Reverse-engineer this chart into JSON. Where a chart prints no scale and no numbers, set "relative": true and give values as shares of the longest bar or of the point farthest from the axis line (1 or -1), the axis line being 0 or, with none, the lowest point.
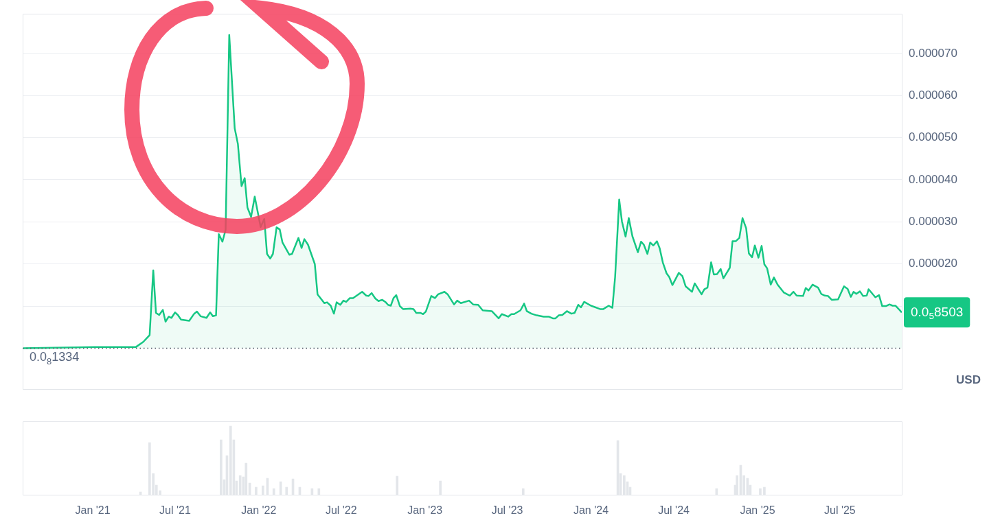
{
  "chart_data": [
    {
      "type": "area",
      "ylabel": "USD",
      "marker": "none",
      "grid": "y",
      "legend": false,
      "tick_labels": "y",
      "xlim": [
        "2020-07-31",
        "2025-11-14"
      ],
      "ylim": [
        -9.7e-06,
        7.94e-05
      ],
      "yticks": [
        {
          "value": 1e-05,
          "label": null
        },
        {
          "value": 2e-05,
          "label": "0.000020"
        },
        {
          "value": 3e-05,
          "label": "0.000030"
        },
        {
          "value": 4e-05,
          "label": "0.000040"
        },
        {
          "value": 5e-05,
          "label": "0.000050"
        },
        {
          "value": 6e-05,
          "label": "0.000060"
        },
        {
          "value": 7e-05,
          "label": "0.000070"
        }
      ],
      "ref_lines": [
        {
          "axis": "y",
          "value": 1.334e-08,
          "label": "0.0$_{8}$1334",
          "line_style": "dotted",
          "color": "#4b5563"
        }
      ],
      "annotations": [
        {
          "text": "0.0$_{5}$8503",
          "x": "2025-11-14",
          "y": 8.503e-06
        }
      ],
      "x": [
        "2020-07-31",
        "2021-01-04",
        "2021-04-06",
        "2021-04-22",
        "2021-05-06",
        "2021-05-14",
        "2021-05-20",
        "2021-05-27",
        "2021-06-04",
        "2021-06-10",
        "2021-06-17",
        "2021-06-23",
        "2021-07-01",
        "2021-07-07",
        "2021-07-14",
        "2021-08-01",
        "2021-08-12",
        "2021-08-18",
        "2021-08-26",
        "2021-09-08",
        "2021-09-16",
        "2021-09-22",
        "2021-09-29",
        "2021-10-05",
        "2021-10-13",
        "2021-10-20",
        "2021-10-28",
        "2021-11-09",
        "2021-11-16",
        "2021-11-24",
        "2021-12-01",
        "2021-12-07",
        "2021-12-15",
        "2021-12-23",
        "2022-01-05",
        "2022-01-13",
        "2022-01-19",
        "2022-01-26",
        "2022-02-01",
        "2022-02-09",
        "2022-02-16",
        "2022-02-22",
        "2022-03-09",
        "2022-03-15",
        "2022-03-29",
        "2022-04-05",
        "2022-04-11",
        "2022-04-19",
        "2022-05-04",
        "2022-05-10",
        "2022-05-25",
        "2022-05-31",
        "2022-06-08",
        "2022-06-15",
        "2022-06-21",
        "2022-06-29",
        "2022-07-06",
        "2022-07-12",
        "2022-07-20",
        "2022-07-27",
        "2022-08-16",
        "2022-08-25",
        "2022-08-30",
        "2022-09-06",
        "2022-09-14",
        "2022-09-21",
        "2022-09-29",
        "2022-10-06",
        "2022-10-12",
        "2022-10-18",
        "2022-10-24",
        "2022-10-30",
        "2022-11-07",
        "2022-11-14",
        "2022-11-30",
        "2022-12-07",
        "2022-12-13",
        "2022-12-22",
        "2022-12-28",
        "2023-01-03",
        "2023-01-15",
        "2023-01-23",
        "2023-01-30",
        "2023-02-13",
        "2023-02-20",
        "2023-03-06",
        "2023-03-13",
        "2023-03-21",
        "2023-04-08",
        "2023-04-17",
        "2023-04-28",
        "2023-05-08",
        "2023-05-28",
        "2023-06-12",
        "2023-06-19",
        "2023-07-03",
        "2023-07-10",
        "2023-07-16",
        "2023-07-30",
        "2023-08-07",
        "2023-08-13",
        "2023-08-23",
        "2023-09-04",
        "2023-09-19",
        "2023-09-30",
        "2023-10-09",
        "2023-10-15",
        "2023-10-22",
        "2023-10-30",
        "2023-11-09",
        "2023-11-19",
        "2023-11-26",
        "2023-12-04",
        "2023-12-10",
        "2023-12-17",
        "2024-01-01",
        "2024-01-21",
        "2024-01-28",
        "2024-02-09",
        "2024-02-17",
        "2024-02-23",
        "2024-03-03",
        "2024-03-09",
        "2024-03-17",
        "2024-03-24",
        "2024-04-01",
        "2024-04-13",
        "2024-04-20",
        "2024-04-26",
        "2024-05-04",
        "2024-05-10",
        "2024-05-17",
        "2024-05-25",
        "2024-05-31",
        "2024-06-07",
        "2024-06-15",
        "2024-06-21",
        "2024-06-28",
        "2024-07-12",
        "2024-07-20",
        "2024-07-27",
        "2024-08-10",
        "2024-08-16",
        "2024-08-31",
        "2024-09-06",
        "2024-09-13",
        "2024-09-21",
        "2024-09-27",
        "2024-10-04",
        "2024-10-12",
        "2024-10-18",
        "2024-11-01",
        "2024-11-07",
        "2024-11-14",
        "2024-11-22",
        "2024-11-29",
        "2024-12-07",
        "2024-12-13",
        "2024-12-20",
        "2024-12-26",
        "2025-01-03",
        "2025-01-10",
        "2025-01-16",
        "2025-01-22",
        "2025-01-30",
        "2025-02-06",
        "2025-02-14",
        "2025-02-28",
        "2025-03-13",
        "2025-03-21",
        "2025-03-28",
        "2025-04-11",
        "2025-04-17",
        "2025-04-23",
        "2025-05-02",
        "2025-05-14",
        "2025-05-21",
        "2025-05-29",
        "2025-06-05",
        "2025-06-13",
        "2025-06-27",
        "2025-07-10",
        "2025-07-18",
        "2025-07-25",
        "2025-07-31",
        "2025-08-06",
        "2025-08-14",
        "2025-08-21",
        "2025-08-29",
        "2025-09-02",
        "2025-09-17",
        "2025-09-25",
        "2025-10-02",
        "2025-10-10",
        "2025-10-18",
        "2025-10-25",
        "2025-10-31",
        "2025-11-09",
        "2025-11-14"
      ],
      "series": [
        {
          "color": "#16c784",
          "values": [
            0,
            3e-07,
            3e-07,
            1.5e-06,
            3.1e-06,
            1.85e-05,
            8.4e-06,
            7.9e-06,
            9.1e-06,
            6.3e-06,
            7.5e-06,
            7.2e-06,
            8.5e-06,
            7.9e-06,
            6.8e-06,
            6.5e-06,
            8.2e-06,
            8.7e-06,
            7.6e-06,
            7.2e-06,
            8.5e-06,
            7.6e-06,
            7.8e-06,
            2.71e-05,
            2.53e-05,
            2.81e-05,
            7.44e-05,
            5.22e-05,
            4.85e-05,
            3.85e-05,
            4.04e-05,
            3.34e-05,
            3.12e-05,
            3.6e-05,
            2.88e-05,
            3.07e-05,
            2.24e-05,
            2.13e-05,
            2.24e-05,
            2.87e-05,
            2.82e-05,
            2.51e-05,
            2.22e-05,
            2.24e-05,
            2.62e-05,
            2.38e-05,
            2.59e-05,
            2.46e-05,
            2e-05,
            1.28e-05,
            1.07e-05,
            1.09e-05,
            1.01e-05,
            8.2e-06,
            1.09e-05,
            1.03e-05,
            1.13e-05,
            1.1e-05,
            1.19e-05,
            1.19e-05,
            1.34e-05,
            1.25e-05,
            1.24e-05,
            1.31e-05,
            1.18e-05,
            1.12e-05,
            1.15e-05,
            1.1e-05,
            1.03e-05,
            1.01e-05,
            1.19e-05,
            1.26e-05,
            1e-05,
            9.3e-06,
            9.4e-06,
            9.3e-06,
            8.4e-06,
            8.4e-06,
            8.1e-06,
            8.7e-06,
            1.24e-05,
            1.19e-05,
            1.28e-05,
            1.34e-05,
            1.28e-05,
            1.04e-05,
            1.13e-05,
            1.07e-05,
            1.13e-05,
            1.04e-05,
            1.03e-05,
            9e-06,
            8.8e-06,
            7.1e-06,
            8.1e-06,
            7.5e-06,
            8.1e-06,
            8.1e-06,
            9e-06,
            1.06e-05,
            8.8e-06,
            8.2e-06,
            7.8e-06,
            7.5e-06,
            7.5e-06,
            7.1e-06,
            7.1e-06,
            7.8e-06,
            7.9e-06,
            8.8e-06,
            8.2e-06,
            8.4e-06,
            1.03e-05,
            9.7e-06,
            1.1e-05,
            1.01e-05,
            9.3e-06,
            9.3e-06,
            1.01e-05,
            9.6e-06,
            1.69e-05,
            3.53e-05,
            3.01e-05,
            2.65e-05,
            3.09e-05,
            2.66e-05,
            2.28e-05,
            2.53e-05,
            2.46e-05,
            2.24e-05,
            2.51e-05,
            2.44e-05,
            2.54e-05,
            2.37e-05,
            2.03e-05,
            1.78e-05,
            1.69e-05,
            1.5e-05,
            1.79e-05,
            1.71e-05,
            1.47e-05,
            1.34e-05,
            1.54e-05,
            1.28e-05,
            1.4e-05,
            1.44e-05,
            2.04e-05,
            1.75e-05,
            1.76e-05,
            1.88e-05,
            1.66e-05,
            1.91e-05,
            2.54e-05,
            2.54e-05,
            2.62e-05,
            3.09e-05,
            2.85e-05,
            2.25e-05,
            2.16e-05,
            2.44e-05,
            2.15e-05,
            2.43e-05,
            1.99e-05,
            1.9e-05,
            1.51e-05,
            1.68e-05,
            1.51e-05,
            1.32e-05,
            1.25e-05,
            1.34e-05,
            1.25e-05,
            1.24e-05,
            1.43e-05,
            1.37e-05,
            1.51e-05,
            1.44e-05,
            1.29e-05,
            1.25e-05,
            1.24e-05,
            1.15e-05,
            1.16e-05,
            1.47e-05,
            1.41e-05,
            1.22e-05,
            1.34e-05,
            1.29e-05,
            1.35e-05,
            1.24e-05,
            1.25e-05,
            1.4e-05,
            1.21e-05,
            1.26e-05,
            1e-05,
            1e-05,
            1.04e-05,
            1.01e-05,
            1.01e-05,
            9.1e-06,
            8.503e-06
          ]
        }
      ]
    },
    {
      "type": "bar",
      "relative": true,
      "legend": false,
      "tick_labels": "x",
      "color": "#e3e6ea",
      "xlim": [
        "2020-07-31",
        "2025-11-14"
      ],
      "xticks": [
        {
          "value": "2021-01-01",
          "label": "Jan '21"
        },
        {
          "value": "2021-07-01",
          "label": "Jul '21"
        },
        {
          "value": "2022-01-01",
          "label": "Jan '22"
        },
        {
          "value": "2022-07-01",
          "label": "Jul '22"
        },
        {
          "value": "2023-01-01",
          "label": "Jan '23"
        },
        {
          "value": "2023-07-01",
          "label": "Jul '23"
        },
        {
          "value": "2024-01-01",
          "label": "Jan '24"
        },
        {
          "value": "2024-07-01",
          "label": "Jul '24"
        },
        {
          "value": "2025-01-01",
          "label": "Jan '25"
        },
        {
          "value": "2025-07-01",
          "label": "Jul '25"
        }
      ],
      "x": [
        "2021-04-16",
        "2021-05-06",
        "2021-05-14",
        "2021-05-21",
        "2021-05-29",
        "2021-10-10",
        "2021-10-17",
        "2021-10-23",
        "2021-10-31",
        "2021-11-07",
        "2021-11-13",
        "2021-11-21",
        "2021-11-28",
        "2021-12-04",
        "2021-12-12",
        "2021-12-26",
        "2022-01-10",
        "2022-01-20",
        "2022-02-03",
        "2022-02-18",
        "2022-03-03",
        "2022-03-17",
        "2022-04-01",
        "2022-04-28",
        "2022-05-13",
        "2022-11-01",
        "2023-02-04",
        "2023-08-05",
        "2024-02-29",
        "2024-03-06",
        "2024-03-14",
        "2024-03-21",
        "2024-03-27",
        "2024-10-03",
        "2024-11-13",
        "2024-11-17",
        "2024-11-25",
        "2024-12-02",
        "2024-12-10",
        "2024-12-16",
        "2025-01-07",
        "2025-01-16"
      ],
      "values": [
        0.04,
        0.76,
        0.31,
        0.14,
        0.06,
        0.8,
        0.22,
        0.57,
        1,
        0.8,
        0.2,
        0.28,
        0.26,
        0.46,
        0.17,
        0.11,
        0.13,
        0.24,
        0.09,
        0.19,
        0.11,
        0.23,
        0.11,
        0.09,
        0.09,
        0.27,
        0.2,
        0.09,
        0.79,
        0.31,
        0.28,
        0.19,
        0.11,
        0.09,
        0.14,
        0.28,
        0.43,
        0.28,
        0.24,
        0.14,
        0.09,
        0.11
      ]
    }
  ]
}
